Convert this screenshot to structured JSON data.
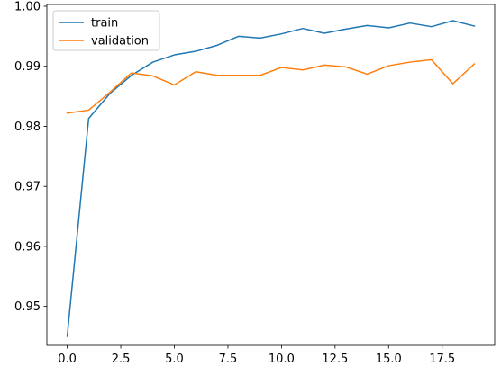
{
  "chart_data": {
    "type": "line",
    "title": "",
    "xlabel": "",
    "ylabel": "",
    "xlim": [
      -0.95,
      19.95
    ],
    "ylim": [
      0.9435,
      1.0003
    ],
    "grid": false,
    "legend_position": "top-left",
    "x_ticks": [
      0.0,
      2.5,
      5.0,
      7.5,
      10.0,
      12.5,
      15.0,
      17.5
    ],
    "x_tick_labels": [
      "0.0",
      "2.5",
      "5.0",
      "7.5",
      "10.0",
      "12.5",
      "15.0",
      "17.5"
    ],
    "y_ticks": [
      0.95,
      0.96,
      0.97,
      0.98,
      0.99,
      1.0
    ],
    "y_tick_labels": [
      "0.95",
      "0.96",
      "0.97",
      "0.98",
      "0.99",
      "1.00"
    ],
    "x": [
      0,
      1,
      2,
      3,
      4,
      5,
      6,
      7,
      8,
      9,
      10,
      11,
      12,
      13,
      14,
      15,
      16,
      17,
      18,
      19
    ],
    "series": [
      {
        "name": "train",
        "color": "#1f77b4",
        "values": [
          0.945,
          0.9813,
          0.9855,
          0.9885,
          0.9907,
          0.9919,
          0.9925,
          0.9935,
          0.995,
          0.9947,
          0.9954,
          0.9963,
          0.9955,
          0.9962,
          0.9968,
          0.9964,
          0.9972,
          0.9966,
          0.9976,
          0.9967
        ]
      },
      {
        "name": "validation",
        "color": "#ff7f0e",
        "values": [
          0.9822,
          0.9827,
          0.9857,
          0.9889,
          0.9884,
          0.9869,
          0.9891,
          0.9885,
          0.9885,
          0.9885,
          0.9898,
          0.9894,
          0.9902,
          0.9899,
          0.9887,
          0.9901,
          0.9907,
          0.9911,
          0.9871,
          0.9904
        ]
      }
    ]
  }
}
